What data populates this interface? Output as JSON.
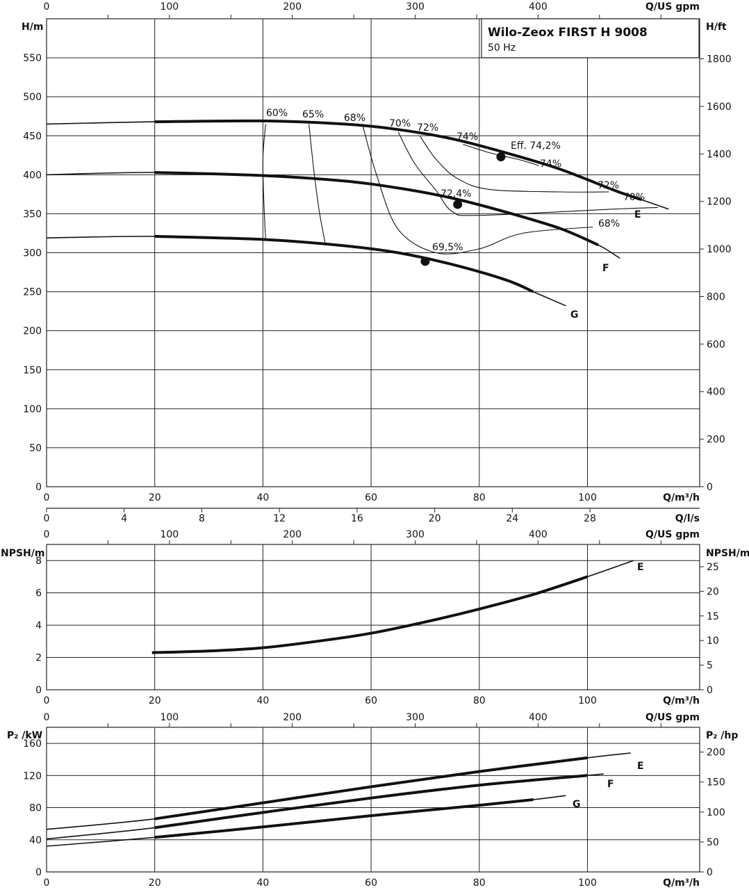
{
  "title": {
    "main": "Wilo-Zeox FIRST H 9008",
    "sub": "50 Hz"
  },
  "axes": {
    "q_m3h": "Q/m³/h",
    "q_ls": "Q/l/s",
    "q_usgpm": "Q/US gpm",
    "h_m": "H/m",
    "h_ft": "H/ft",
    "npsh_m": "NPSH/m",
    "p2_kw": "P₂ /kW",
    "p2_hp": "P₂ /hp"
  },
  "ticks": {
    "q_m3h": [
      "0",
      "20",
      "40",
      "60",
      "80",
      "100"
    ],
    "q_ls": [
      "0",
      "4",
      "8",
      "12",
      "16",
      "20",
      "24",
      "28"
    ],
    "q_usgpm": [
      "0",
      "100",
      "200",
      "300",
      "400"
    ],
    "h_m": [
      "0",
      "50",
      "100",
      "150",
      "200",
      "250",
      "300",
      "350",
      "400",
      "450",
      "500",
      "550"
    ],
    "h_ft": [
      "0",
      "200",
      "400",
      "600",
      "800",
      "1000",
      "1200",
      "1400",
      "1600",
      "1800"
    ],
    "npsh_m_left": [
      "0",
      "2",
      "4",
      "6",
      "8"
    ],
    "npsh_m_right": [
      "0",
      "5",
      "10",
      "15",
      "20",
      "25"
    ],
    "p2_kw": [
      "0",
      "40",
      "80",
      "120",
      "160"
    ],
    "p2_hp": [
      "0",
      "50",
      "100",
      "150",
      "200"
    ]
  },
  "chart_data": [
    {
      "type": "line",
      "name": "head",
      "xlabel": "Q/m³/h",
      "ylabel": "H/m",
      "xlim": [
        0,
        120
      ],
      "ylim": [
        0,
        600
      ],
      "series": [
        {
          "name": "E",
          "x": [
            0,
            20,
            40,
            55,
            65,
            75,
            85,
            95,
            105,
            110,
            115
          ],
          "y": [
            465,
            468,
            469,
            465,
            458,
            446,
            428,
            407,
            380,
            368,
            356
          ]
        },
        {
          "name": "F",
          "x": [
            0,
            20,
            40,
            55,
            65,
            75,
            85,
            95,
            102,
            106
          ],
          "y": [
            400,
            403,
            399,
            392,
            383,
            370,
            352,
            331,
            310,
            293
          ]
        },
        {
          "name": "G",
          "x": [
            0,
            20,
            40,
            55,
            65,
            75,
            85,
            90,
            96
          ],
          "y": [
            319,
            321,
            317,
            309,
            300,
            285,
            265,
            250,
            232
          ]
        }
      ],
      "efficiency_labels": [
        "60%",
        "65%",
        "68%",
        "70%",
        "72%",
        "74%",
        "Eff. 74,2%",
        "74%",
        "72%",
        "70%",
        "72,4%",
        "68%",
        "69,5%"
      ],
      "bep_points": [
        {
          "curve": "E",
          "x": 84,
          "y": 423,
          "label": "Eff. 74,2%"
        },
        {
          "curve": "F",
          "x": 76,
          "y": 362,
          "label": "72,4%"
        },
        {
          "curve": "G",
          "x": 70,
          "y": 289,
          "label": "69,5%"
        }
      ],
      "grid": true
    },
    {
      "type": "line",
      "name": "npsh",
      "xlabel": "Q/m³/h",
      "ylabel": "NPSH/m",
      "xlim": [
        0,
        120
      ],
      "ylim": [
        0,
        9
      ],
      "series": [
        {
          "name": "E",
          "x": [
            19.5,
            30,
            40,
            50,
            60,
            70,
            80,
            90,
            100,
            108.5
          ],
          "y": [
            2.3,
            2.4,
            2.6,
            3.0,
            3.5,
            4.2,
            5.0,
            5.9,
            7.0,
            8.0
          ]
        }
      ],
      "grid": true
    },
    {
      "type": "line",
      "name": "power",
      "xlabel": "Q/m³/h",
      "ylabel": "P₂ /kW",
      "xlim": [
        0,
        120
      ],
      "ylim": [
        0,
        180
      ],
      "series": [
        {
          "name": "E",
          "x": [
            0,
            20,
            40,
            60,
            80,
            100,
            108
          ],
          "y": [
            53,
            66,
            86,
            106,
            125,
            142,
            148
          ]
        },
        {
          "name": "F",
          "x": [
            0,
            20,
            40,
            60,
            80,
            100,
            103
          ],
          "y": [
            41,
            55,
            74,
            92,
            108,
            120,
            122
          ]
        },
        {
          "name": "G",
          "x": [
            0,
            20,
            40,
            60,
            80,
            90,
            96
          ],
          "y": [
            32,
            43,
            56,
            70,
            83,
            90,
            95
          ]
        }
      ],
      "grid": true
    }
  ]
}
